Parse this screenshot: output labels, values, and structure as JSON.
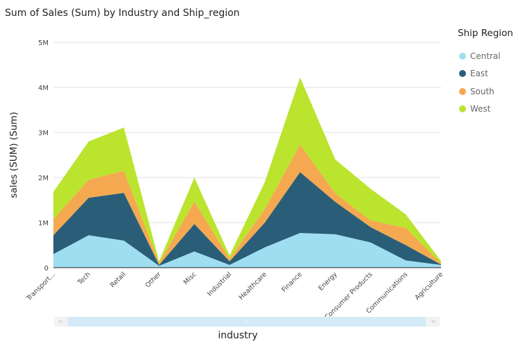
{
  "title": "Sum of Sales (Sum) by Industry and Ship_region",
  "legend": {
    "title": "Ship Region"
  },
  "scrollbar": {
    "grip": ":::",
    "left_grip": "≡",
    "right_grip": "≡"
  },
  "chart_data": {
    "type": "area",
    "stacked": true,
    "title": "Sum of Sales (Sum) by Industry and Ship_region",
    "xlabel": "industry",
    "ylabel": "sales (SUM) (Sum)",
    "ylim": [
      0,
      5000000
    ],
    "yticks": [
      {
        "v": 0,
        "label": "0"
      },
      {
        "v": 1000000,
        "label": "1M"
      },
      {
        "v": 2000000,
        "label": "2M"
      },
      {
        "v": 3000000,
        "label": "3M"
      },
      {
        "v": 4000000,
        "label": "4M"
      },
      {
        "v": 5000000,
        "label": "5M"
      }
    ],
    "grid": true,
    "legend_position": "right",
    "categories": [
      "Transport...",
      "Tech",
      "Retail",
      "Other",
      "Misc",
      "Industrial",
      "Healthcare",
      "Finance",
      "Energy",
      "Consumer Products",
      "Communications",
      "Agriculture"
    ],
    "series": [
      {
        "name": "Central",
        "color": "#9fdef0",
        "values": [
          300000,
          720000,
          600000,
          40000,
          360000,
          60000,
          450000,
          770000,
          740000,
          560000,
          160000,
          60000
        ]
      },
      {
        "name": "East",
        "color": "#2a5e78",
        "values": [
          420000,
          830000,
          1060000,
          20000,
          610000,
          80000,
          550000,
          1350000,
          720000,
          340000,
          340000,
          10000
        ]
      },
      {
        "name": "South",
        "color": "#f4a950",
        "values": [
          350000,
          400000,
          490000,
          40000,
          500000,
          60000,
          300000,
          610000,
          190000,
          150000,
          380000,
          30000
        ]
      },
      {
        "name": "West",
        "color": "#bbe42e",
        "values": [
          610000,
          850000,
          960000,
          40000,
          530000,
          70000,
          600000,
          1490000,
          750000,
          700000,
          300000,
          50000
        ]
      }
    ]
  }
}
